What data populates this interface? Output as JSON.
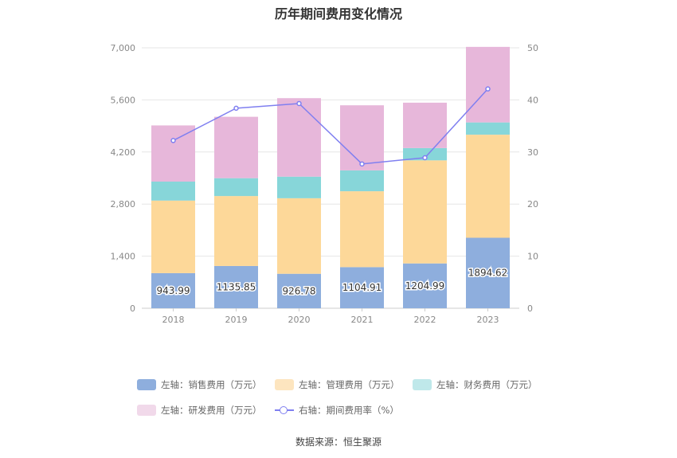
{
  "chart_data": {
    "type": "bar",
    "title": "历年期间费用变化情况",
    "categories": [
      "2018",
      "2019",
      "2020",
      "2021",
      "2022",
      "2023"
    ],
    "left_axis": {
      "ylim": [
        0,
        7000
      ],
      "ticks": [
        "0",
        "1,400",
        "2,800",
        "4,200",
        "5,600",
        "7,000"
      ],
      "tick_values": [
        0,
        1400,
        2800,
        4200,
        5600,
        7000
      ]
    },
    "right_axis": {
      "ylim": [
        0,
        50
      ],
      "ticks": [
        "0",
        "10",
        "20",
        "30",
        "40",
        "50"
      ],
      "tick_values": [
        0,
        10,
        20,
        30,
        40,
        50
      ]
    },
    "series": [
      {
        "name": "左轴：销售费用（万元）",
        "type": "bar",
        "color": "#8eaedd",
        "values": [
          943.99,
          1135.85,
          926.78,
          1104.91,
          1204.99,
          1894.62
        ],
        "data_labels": [
          "943.99",
          "1135.85",
          "926.78",
          "1104.91",
          "1204.99",
          "1894.62"
        ]
      },
      {
        "name": "左轴：管理费用（万元）",
        "type": "bar",
        "color": "#fdd899",
        "values": [
          1950,
          1880,
          2030,
          2040,
          2770,
          2770
        ]
      },
      {
        "name": "左轴：财务费用（万元）",
        "type": "bar",
        "color": "#87d6d9",
        "values": [
          510,
          480,
          580,
          560,
          330,
          330
        ]
      },
      {
        "name": "左轴：研发费用（万元）",
        "type": "bar",
        "color": "#e7b7da",
        "values": [
          1510,
          1650,
          2110,
          1750,
          1220,
          2030
        ]
      },
      {
        "name": "右轴：期间费用率（%）",
        "type": "line",
        "axis": "right",
        "color": "#7f7ff0",
        "values": [
          32.2,
          38.4,
          39.3,
          27.7,
          28.9,
          42.1
        ]
      }
    ],
    "grid": true,
    "legend_position": "bottom"
  },
  "source": "数据来源：恒生聚源"
}
